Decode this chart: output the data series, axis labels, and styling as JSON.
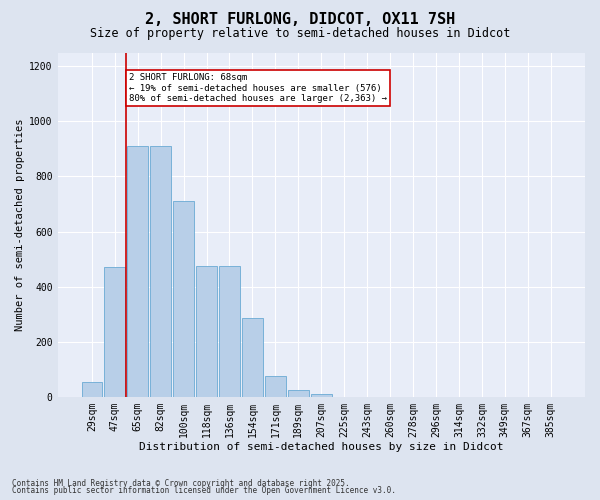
{
  "title": "2, SHORT FURLONG, DIDCOT, OX11 7SH",
  "subtitle": "Size of property relative to semi-detached houses in Didcot",
  "xlabel": "Distribution of semi-detached houses by size in Didcot",
  "ylabel": "Number of semi-detached properties",
  "footnote1": "Contains HM Land Registry data © Crown copyright and database right 2025.",
  "footnote2": "Contains public sector information licensed under the Open Government Licence v3.0.",
  "bar_labels": [
    "29sqm",
    "47sqm",
    "65sqm",
    "82sqm",
    "100sqm",
    "118sqm",
    "136sqm",
    "154sqm",
    "171sqm",
    "189sqm",
    "207sqm",
    "225sqm",
    "243sqm",
    "260sqm",
    "278sqm",
    "296sqm",
    "314sqm",
    "332sqm",
    "349sqm",
    "367sqm",
    "385sqm"
  ],
  "bar_values": [
    55,
    470,
    910,
    910,
    710,
    475,
    475,
    285,
    75,
    25,
    10,
    0,
    0,
    0,
    0,
    0,
    0,
    0,
    0,
    0,
    0
  ],
  "bar_color": "#b8cfe8",
  "bar_edgecolor": "#6aaad4",
  "annotation_line1": "2 SHORT FURLONG: 68sqm",
  "annotation_line2": "← 19% of semi-detached houses are smaller (576)",
  "annotation_line3": "80% of semi-detached houses are larger (2,363) →",
  "ylim": [
    0,
    1250
  ],
  "yticks": [
    0,
    200,
    400,
    600,
    800,
    1000,
    1200
  ],
  "red_line_color": "#cc0000",
  "annotation_box_facecolor": "#ffffff",
  "annotation_box_edgecolor": "#cc0000",
  "bg_color": "#dde4f0",
  "plot_bg_color": "#e8edf8",
  "title_fontsize": 11,
  "subtitle_fontsize": 8.5,
  "ylabel_fontsize": 7.5,
  "xlabel_fontsize": 8,
  "tick_fontsize": 7,
  "annot_fontsize": 6.5,
  "footnote_fontsize": 5.5
}
